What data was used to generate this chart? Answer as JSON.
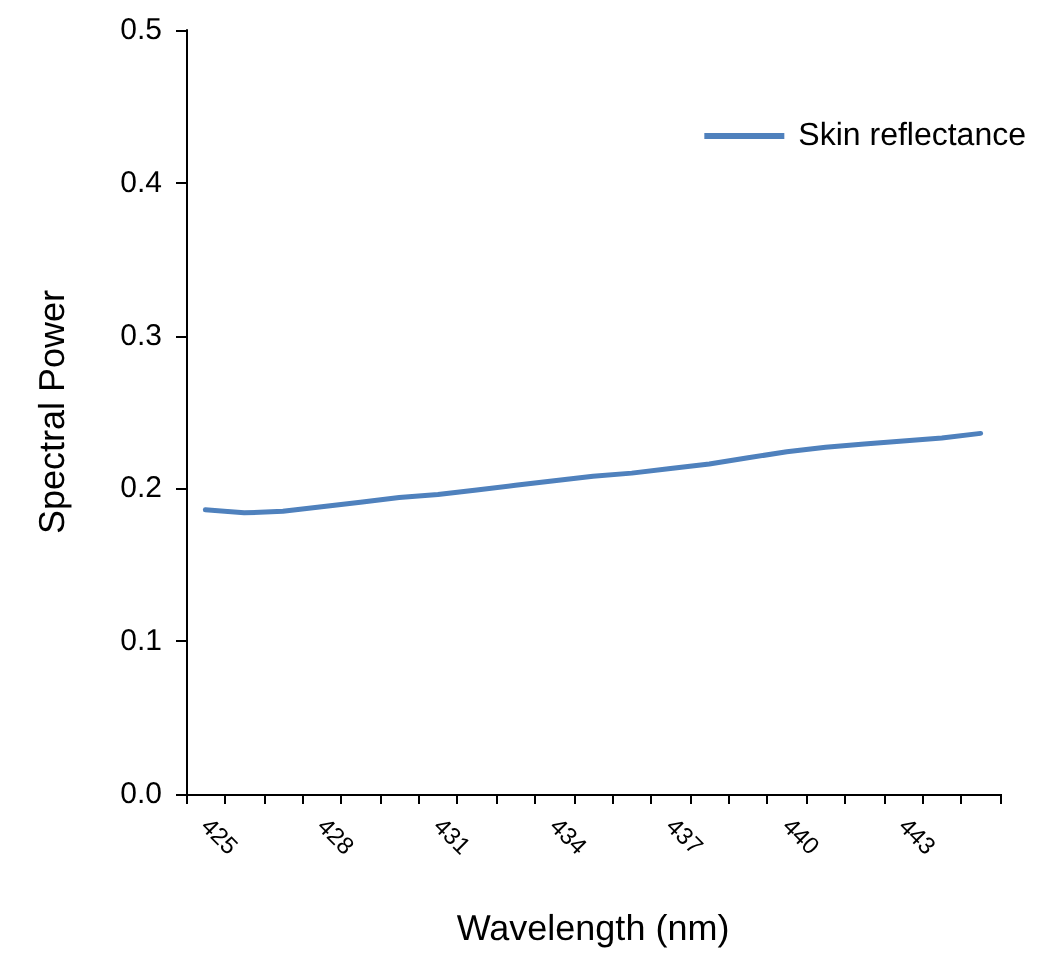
{
  "chart_data": {
    "type": "line",
    "xlabel": "Wavelength (nm)",
    "ylabel": "Spectral Power",
    "categories": [
      "425",
      null,
      null,
      "428",
      null,
      null,
      "431",
      null,
      null,
      "434",
      null,
      null,
      "437",
      null,
      null,
      "440",
      null,
      null,
      "443",
      null,
      null
    ],
    "series": [
      {
        "name": "Skin reflectance",
        "color": "#4f81bd",
        "values": [
          0.186,
          0.184,
          0.185,
          0.188,
          0.191,
          0.194,
          0.196,
          0.199,
          0.202,
          0.205,
          0.208,
          0.21,
          0.213,
          0.216,
          0.22,
          0.224,
          0.227,
          0.229,
          0.231,
          0.233,
          0.236
        ]
      }
    ],
    "ylim": [
      0,
      0.5
    ],
    "yticks": [
      {
        "value": 0,
        "label": "0.0"
      },
      0.1,
      0.2,
      0.3,
      0.4,
      0.5
    ],
    "grid": false,
    "legend": "top right",
    "marker": "none",
    "line_style": "solid"
  }
}
